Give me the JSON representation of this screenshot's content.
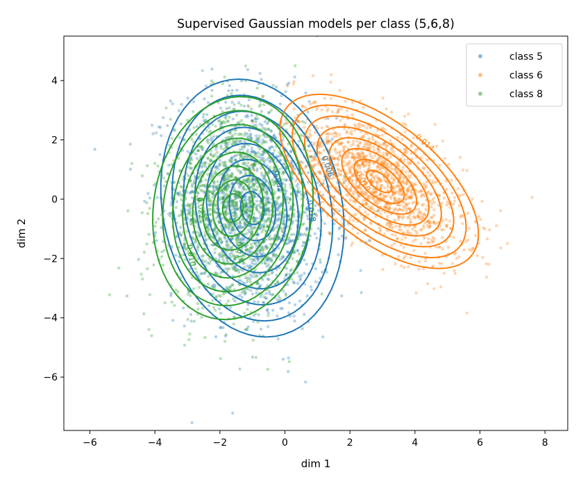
{
  "chart_data": {
    "type": "scatter",
    "title": "Supervised Gaussian models per class (5,6,8)",
    "xlabel": "dim 1",
    "ylabel": "dim 2",
    "xlim": [
      -6.8,
      8.7
    ],
    "ylim": [
      -7.8,
      5.5
    ],
    "xticks": [
      -6,
      -4,
      -2,
      0,
      2,
      4,
      6,
      8
    ],
    "yticks": [
      -6,
      -4,
      -2,
      0,
      2,
      4
    ],
    "grid": false,
    "legend_position": "top-right",
    "series": [
      {
        "name": "class 5",
        "color": "#1f77b4",
        "mean": [
          -1.0,
          -0.3
        ],
        "sd": [
          1.2,
          1.85
        ],
        "rho": -0.15,
        "n_points": 1400,
        "contour_levels": [
          "0.002",
          "0.006",
          "0.010",
          "0.014",
          "0.018",
          "0.022",
          "0.026",
          "0.030"
        ]
      },
      {
        "name": "class 6",
        "color": "#ff7f0e",
        "mean": [
          2.9,
          0.6
        ],
        "sd": [
          1.3,
          1.25
        ],
        "rho": -0.6,
        "n_points": 1400,
        "contour_levels": [
          "0.002",
          "0.006",
          "0.010",
          "0.014",
          "0.018",
          "0.022",
          "0.026",
          "0.030"
        ]
      },
      {
        "name": "class 8",
        "color": "#2ca02c",
        "mean": [
          -1.6,
          -0.3
        ],
        "sd": [
          1.05,
          1.6
        ],
        "rho": 0.1,
        "n_points": 1400,
        "contour_levels": [
          "0.002",
          "0.006",
          "0.010",
          "0.014",
          "0.018",
          "0.022",
          "0.026",
          "0.030"
        ]
      }
    ],
    "contour_text_labels": [
      {
        "text": "0.006",
        "x": 1.3,
        "y": 1.1,
        "rotate": 72,
        "color": "#1f77b4"
      },
      {
        "text": "0.002",
        "x": -0.2,
        "y": 0.6,
        "rotate": 78,
        "color": "#1f77b4"
      },
      {
        "text": "0.018",
        "x": 0.8,
        "y": -0.4,
        "rotate": 80,
        "color": "#1f77b4"
      },
      {
        "text": "0.014",
        "x": 4.3,
        "y": 1.9,
        "rotate": 40,
        "color": "#ff7f0e"
      },
      {
        "text": "0.010",
        "x": 2.4,
        "y": 0.6,
        "rotate": 60,
        "color": "#ff7f0e"
      },
      {
        "text": "0.022",
        "x": -2.6,
        "y": -0.3,
        "rotate": 85,
        "color": "#2ca02c"
      },
      {
        "text": "0.014",
        "x": -1.4,
        "y": -1.8,
        "rotate": 85,
        "color": "#2ca02c"
      },
      {
        "text": "0.010",
        "x": -2.9,
        "y": -1.9,
        "rotate": 80,
        "color": "#2ca02c"
      }
    ]
  }
}
